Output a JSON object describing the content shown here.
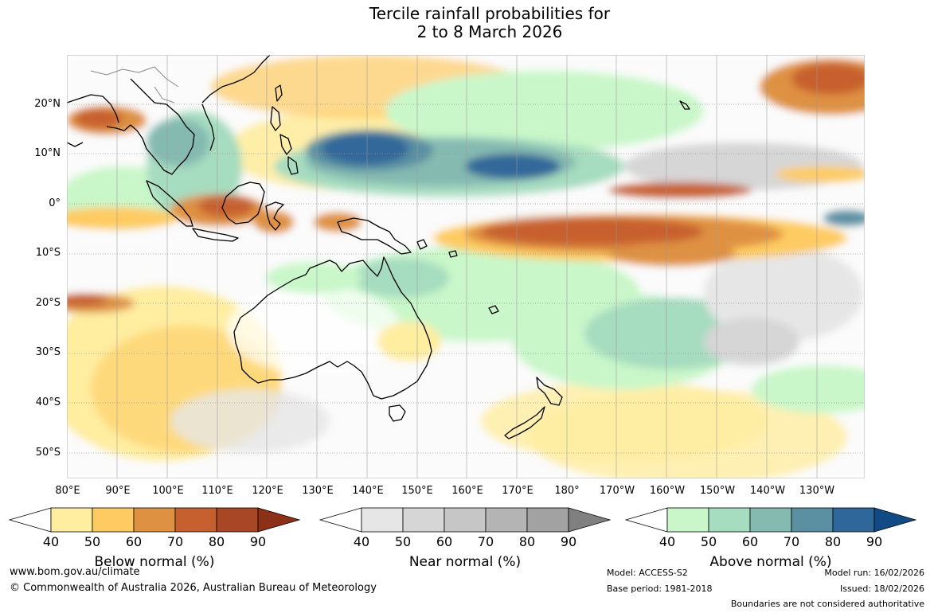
{
  "title": {
    "line1": "Tercile rainfall probabilities for",
    "line2": "2 to 8 March 2026"
  },
  "map": {
    "lat_labels": [
      "20°N",
      "10°N",
      "0°",
      "10°S",
      "20°S",
      "30°S",
      "40°S",
      "50°S"
    ],
    "lon_labels": [
      "80°E",
      "90°E",
      "100°E",
      "110°E",
      "120°E",
      "130°E",
      "140°E",
      "150°E",
      "160°E",
      "170°E",
      "180°",
      "170°W",
      "160°W",
      "150°W",
      "140°W",
      "130°W"
    ]
  },
  "legends": [
    {
      "title": "Below normal (%)",
      "ticks": [
        "40",
        "50",
        "60",
        "70",
        "80",
        "90"
      ],
      "colors": [
        "#ffeda0",
        "#fecb62",
        "#df9142",
        "#c7602f",
        "#a84726",
        "#8c3018"
      ]
    },
    {
      "title": "Near normal (%)",
      "ticks": [
        "40",
        "50",
        "60",
        "70",
        "80",
        "90"
      ],
      "colors": [
        "#e6e6e6",
        "#d6d6d6",
        "#c6c6c6",
        "#b4b4b4",
        "#a2a2a2",
        "#808080"
      ]
    },
    {
      "title": "Above normal (%)",
      "ticks": [
        "40",
        "50",
        "60",
        "70",
        "80",
        "90"
      ],
      "colors": [
        "#c9f7c9",
        "#a6dcbf",
        "#85bab1",
        "#5a90a2",
        "#30679a",
        "#114a84"
      ]
    }
  ],
  "footer": {
    "website": "www.bom.gov.au/climate",
    "copyright": "© Commonwealth of Australia 2026, Australian Bureau of Meteorology",
    "model": "Model: ACCESS-S2",
    "base_period": "Base period: 1981-2018",
    "model_run": "Model run: 16/02/2026",
    "issued": "Issued: 18/02/2026",
    "disclaimer": "Boundaries are not considered authoritative"
  }
}
